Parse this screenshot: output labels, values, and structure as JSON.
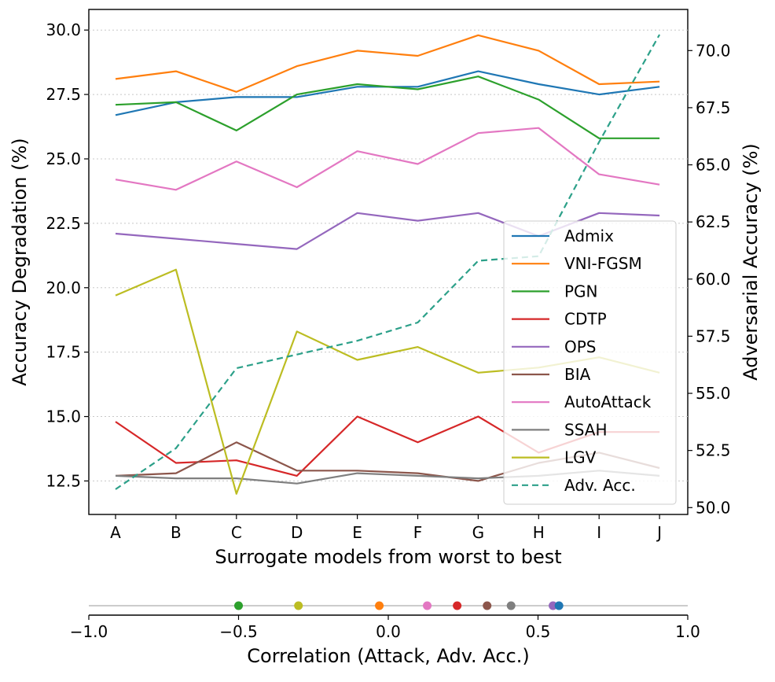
{
  "chart_data": [
    {
      "type": "line",
      "categories": [
        "A",
        "B",
        "C",
        "D",
        "E",
        "F",
        "G",
        "H",
        "I",
        "J"
      ],
      "xlabel": "Surrogate models from worst to best",
      "ylabel": "Accuracy Degradation (%)",
      "y2label": "Adversarial Accuracy (%)",
      "ylim": [
        11.2,
        30.8
      ],
      "y2lim": [
        49.7,
        71.8
      ],
      "yticks": [
        "12.5",
        "15.0",
        "17.5",
        "20.0",
        "22.5",
        "25.0",
        "27.5",
        "30.0"
      ],
      "y2ticks": [
        "50.0",
        "52.5",
        "55.0",
        "57.5",
        "60.0",
        "62.5",
        "65.0",
        "67.5",
        "70.0"
      ],
      "grid": "horizontal-dotted",
      "legend": "center-right",
      "series": [
        {
          "name": "Admix",
          "color": "#1f77b4",
          "axis": "left",
          "values": [
            26.7,
            27.2,
            27.4,
            27.4,
            27.8,
            27.8,
            28.4,
            27.9,
            27.5,
            27.8
          ]
        },
        {
          "name": "VNI-FGSM",
          "color": "#ff7f0e",
          "axis": "left",
          "values": [
            28.1,
            28.4,
            27.6,
            28.6,
            29.2,
            29.0,
            29.8,
            29.2,
            27.9,
            28.0
          ]
        },
        {
          "name": "PGN",
          "color": "#2ca02c",
          "axis": "left",
          "values": [
            27.1,
            27.2,
            26.1,
            27.5,
            27.9,
            27.7,
            28.2,
            27.3,
            25.8,
            25.8
          ]
        },
        {
          "name": "CDTP",
          "color": "#d62728",
          "axis": "left",
          "values": [
            14.8,
            13.2,
            13.3,
            12.7,
            15.0,
            14.0,
            15.0,
            13.6,
            14.4,
            14.4
          ]
        },
        {
          "name": "OPS",
          "color": "#9467bd",
          "axis": "left",
          "values": [
            22.1,
            21.9,
            21.7,
            21.5,
            22.9,
            22.6,
            22.9,
            22.0,
            22.9,
            22.8
          ]
        },
        {
          "name": "BIA",
          "color": "#8c564b",
          "axis": "left",
          "values": [
            12.7,
            12.8,
            14.0,
            12.9,
            12.9,
            12.8,
            12.5,
            13.2,
            13.6,
            13.0
          ]
        },
        {
          "name": "AutoAttack",
          "color": "#e377c2",
          "axis": "left",
          "values": [
            24.2,
            23.8,
            24.9,
            23.9,
            25.3,
            24.8,
            26.0,
            26.2,
            24.4,
            24.0
          ]
        },
        {
          "name": "SSAH",
          "color": "#7f7f7f",
          "axis": "left",
          "values": [
            12.7,
            12.6,
            12.6,
            12.4,
            12.8,
            12.7,
            12.6,
            12.7,
            12.9,
            12.7
          ]
        },
        {
          "name": "LGV",
          "color": "#bcbd22",
          "axis": "left",
          "values": [
            19.7,
            20.7,
            12.0,
            18.3,
            17.2,
            17.7,
            16.7,
            16.9,
            17.3,
            16.7
          ]
        },
        {
          "name": "Adv. Acc.",
          "color": "#2ca089",
          "axis": "right",
          "dashed": true,
          "values": [
            50.8,
            52.6,
            56.1,
            56.7,
            57.3,
            58.1,
            60.8,
            61.0,
            66.0,
            70.7
          ]
        }
      ]
    },
    {
      "type": "scatter",
      "xlabel": "Correlation (Attack, Adv. Acc.)",
      "xlim": [
        -1.0,
        1.0
      ],
      "xticks": [
        "−1.0",
        "−0.5",
        "0.0",
        "0.5",
        "1.0"
      ],
      "points": [
        {
          "name": "PGN",
          "color": "#2ca02c",
          "x": -0.5
        },
        {
          "name": "LGV",
          "color": "#bcbd22",
          "x": -0.3
        },
        {
          "name": "VNI-FGSM",
          "color": "#ff7f0e",
          "x": -0.03
        },
        {
          "name": "AutoAttack",
          "color": "#e377c2",
          "x": 0.13
        },
        {
          "name": "CDTP",
          "color": "#d62728",
          "x": 0.23
        },
        {
          "name": "BIA",
          "color": "#8c564b",
          "x": 0.33
        },
        {
          "name": "SSAH",
          "color": "#7f7f7f",
          "x": 0.41
        },
        {
          "name": "OPS",
          "color": "#9467bd",
          "x": 0.55
        },
        {
          "name": "Admix",
          "color": "#1f77b4",
          "x": 0.57
        }
      ]
    }
  ]
}
